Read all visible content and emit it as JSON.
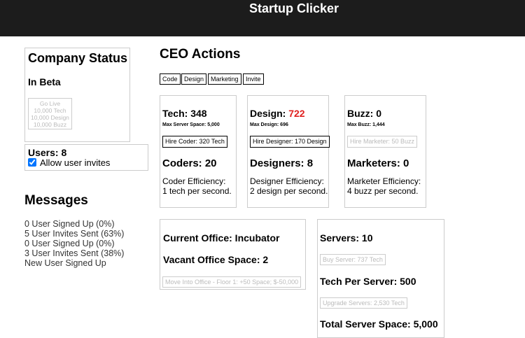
{
  "header": {
    "title": "Startup Clicker"
  },
  "company_status": {
    "title": "Company Status",
    "stage": "In Beta",
    "go_live_button": [
      "Go Live",
      "10,000 Tech",
      "10,000 Design",
      "10,000 Buzz"
    ]
  },
  "users": {
    "label": "Users: 8",
    "checkbox_label": "Allow user invites",
    "checked": true
  },
  "messages": {
    "title": "Messages",
    "items": [
      "0 User Signed Up (0%)",
      "5 User Invites Sent (63%)",
      "0 User Signed Up (0%)",
      "3 User Invites Sent (38%)",
      "New User Signed Up"
    ]
  },
  "ceo_actions": {
    "title": "CEO Actions",
    "buttons": [
      "Code",
      "Design",
      "Marketing",
      "Invite"
    ]
  },
  "cards": [
    {
      "label": "Tech:",
      "value": "348",
      "max": "Max Server Space: 5,000",
      "button": "Hire Coder: 320 Tech",
      "workers": "Coders: 20",
      "efficiency": "Coder Efficiency:",
      "rate": "1 tech per second."
    },
    {
      "label": "Design:",
      "value": "722",
      "max": "Max Design: 696",
      "button": "Hire Designer: 170 Design",
      "workers": "Designers: 8",
      "efficiency": "Designer Efficiency:",
      "rate": "2 design per second."
    },
    {
      "label": "Buzz:",
      "value": "0",
      "max": "Max Buzz: 1,444",
      "button": "Hire Marketer: 50 Buzz",
      "workers": "Marketers: 0",
      "efficiency": "Marketer Efficiency:",
      "rate": "4 buzz per second."
    }
  ],
  "office": {
    "current": "Current Office: Incubator",
    "vacant": "Vacant Office Space: 2",
    "button": "Move Into Office - Floor 1: +50 Space; $-50,000"
  },
  "servers": {
    "count": "Servers: 10",
    "buy_button": "Buy Server: 737 Tech",
    "tech_per_server": "Tech Per Server: 500",
    "upgrade_button": "Upgrade Servers: 2,530 Tech",
    "total": "Total Server Space: 5,000"
  }
}
